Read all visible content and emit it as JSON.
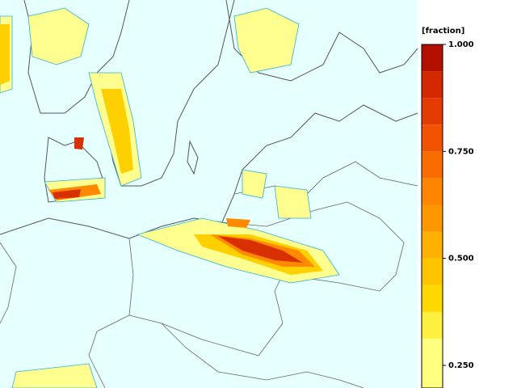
{
  "colorbar": {
    "title": "[fraction]",
    "bounds": [
      0.25,
      0.3125,
      0.375,
      0.4375,
      0.5,
      0.5625,
      0.625,
      0.6875,
      0.75,
      0.8125,
      0.875,
      0.9375,
      1.0
    ],
    "colors": [
      "#ffff80",
      "#fff040",
      "#ffd800",
      "#ffc400",
      "#ffb000",
      "#ff9800",
      "#ff8400",
      "#f86c00",
      "#f05400",
      "#e43c00",
      "#d42800",
      "#b41000"
    ],
    "lim": [
      0.25,
      1.0
    ],
    "ticks": [
      {
        "value": 0.25,
        "label": "0.250"
      },
      {
        "value": 0.5,
        "label": "0.500"
      },
      {
        "value": 0.75,
        "label": "0.750"
      },
      {
        "value": 1.0,
        "label": "1.000"
      }
    ]
  }
}
